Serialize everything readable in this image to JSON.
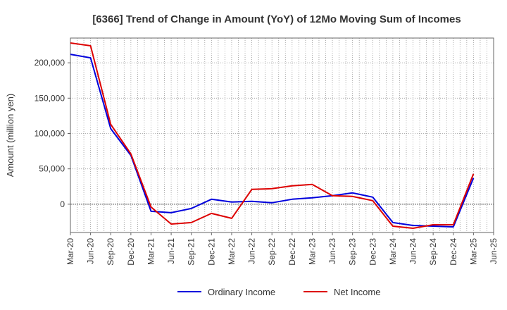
{
  "chart_data": {
    "type": "line",
    "title": "[6366]  Trend of Change in Amount (YoY) of 12Mo Moving Sum of Incomes",
    "xlabel": "",
    "ylabel": "Amount (million yen)",
    "categories": [
      "Mar-20",
      "Jun-20",
      "Sep-20",
      "Dec-20",
      "Mar-21",
      "Jun-21",
      "Sep-21",
      "Dec-21",
      "Mar-22",
      "Jun-22",
      "Sep-22",
      "Dec-22",
      "Mar-23",
      "Jun-23",
      "Sep-23",
      "Dec-23",
      "Mar-24",
      "Jun-24",
      "Sep-24",
      "Dec-24",
      "Mar-25",
      "Jun-25"
    ],
    "ylim": [
      -40000,
      235000
    ],
    "yticks": [
      0,
      50000,
      100000,
      150000,
      200000
    ],
    "ytick_labels": [
      "0",
      "50,000",
      "100,000",
      "150,000",
      "200,000"
    ],
    "grid": true,
    "legend_position": "bottom",
    "series": [
      {
        "name": "Ordinary Income",
        "color": "#0000dd",
        "values": [
          212000,
          207000,
          107000,
          69000,
          -10000,
          -12000,
          -6000,
          7000,
          3000,
          4000,
          2000,
          7000,
          9000,
          12000,
          16000,
          10000,
          -26000,
          -30000,
          -31000,
          -32000,
          37000,
          null
        ]
      },
      {
        "name": "Net Income",
        "color": "#dd0000",
        "values": [
          228000,
          224000,
          113000,
          71000,
          -4000,
          -28000,
          -26000,
          -13000,
          -20000,
          21000,
          22000,
          26000,
          28000,
          12000,
          11000,
          5000,
          -31000,
          -34000,
          -29000,
          -29000,
          43000,
          null
        ]
      }
    ]
  }
}
